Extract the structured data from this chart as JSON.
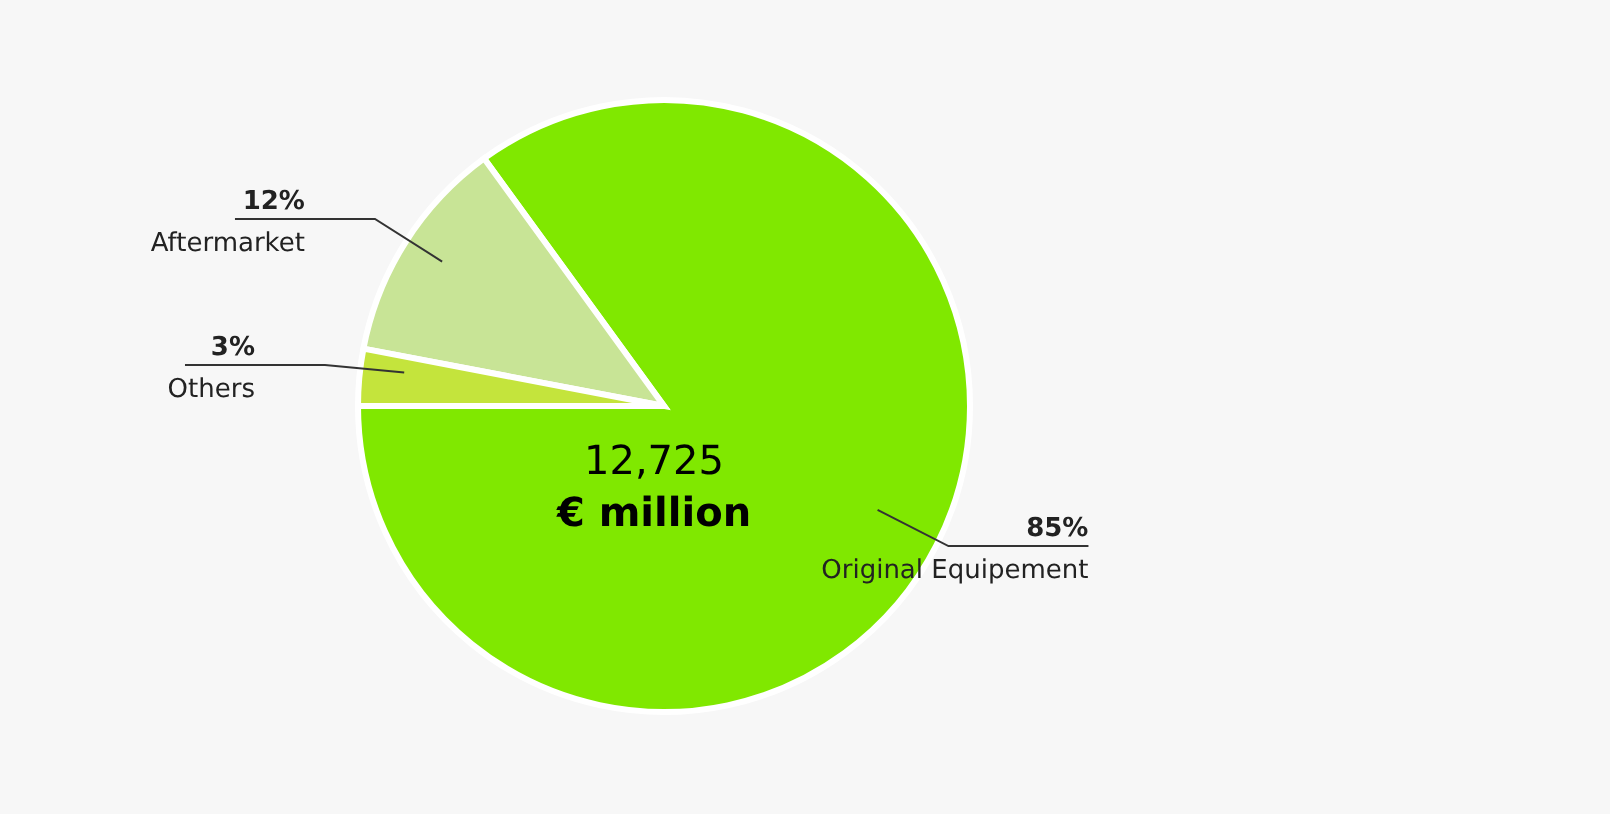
{
  "chart_data": {
    "type": "pie",
    "categories": [
      "Original Equipement",
      "Aftermarket",
      "Others"
    ],
    "values": [
      85,
      12,
      3
    ],
    "value_labels": [
      "85%",
      "12%",
      "3%"
    ],
    "colors": [
      "#80e800",
      "#c8e496",
      "#c4e43c"
    ],
    "annotations": [
      "12,725",
      "€ million"
    ]
  }
}
